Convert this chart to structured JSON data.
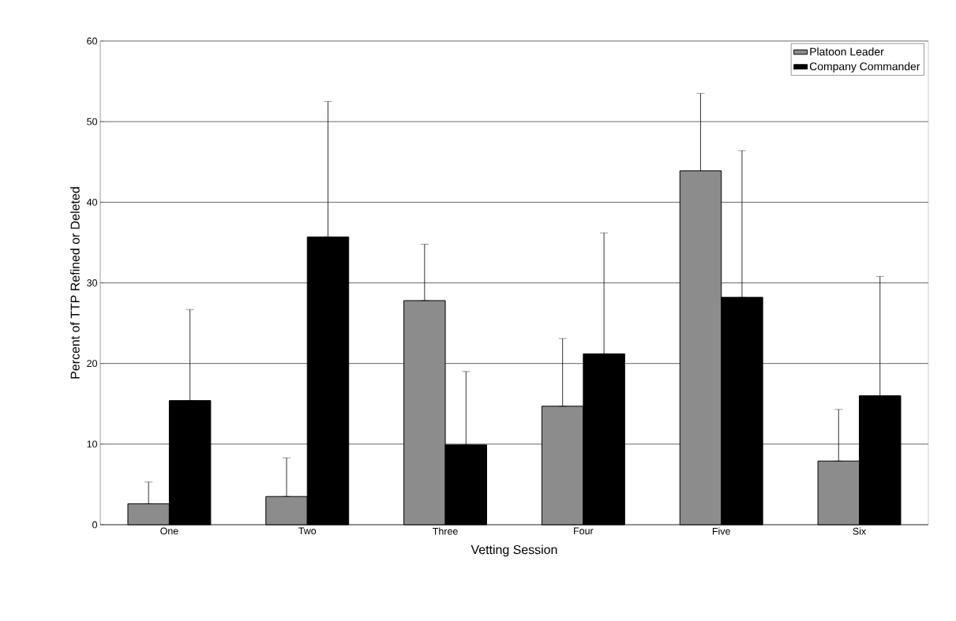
{
  "chart_data": {
    "type": "bar",
    "xlabel": "Vetting Session",
    "ylabel": "Percent of TTP Refined or Deleted",
    "categories": [
      "One",
      "Two",
      "Three",
      "Four",
      "Five",
      "Six"
    ],
    "series": [
      {
        "name": "Platoon Leader",
        "color": "#8c8c8c",
        "values": [
          2.6,
          3.5,
          27.8,
          14.7,
          43.9,
          7.9
        ],
        "errors": [
          [
            2.6,
            5.3
          ],
          [
            3.5,
            8.3
          ],
          [
            27.8,
            34.8
          ],
          [
            14.7,
            23.1
          ],
          [
            43.9,
            53.5
          ],
          [
            7.9,
            14.3
          ]
        ]
      },
      {
        "name": "Company Commander",
        "color": "#000000",
        "values": [
          15.4,
          35.7,
          9.9,
          21.2,
          28.2,
          16.0
        ],
        "errors": [
          [
            15.4,
            26.7
          ],
          [
            35.7,
            52.5
          ],
          [
            9.9,
            19.0
          ],
          [
            21.2,
            36.2
          ],
          [
            28.2,
            46.4
          ],
          [
            16.0,
            30.8
          ]
        ]
      }
    ],
    "ylim": [
      0,
      60
    ],
    "yticks": [
      0,
      10,
      20,
      30,
      40,
      50,
      60
    ],
    "grid": "y",
    "legend": "top right"
  }
}
